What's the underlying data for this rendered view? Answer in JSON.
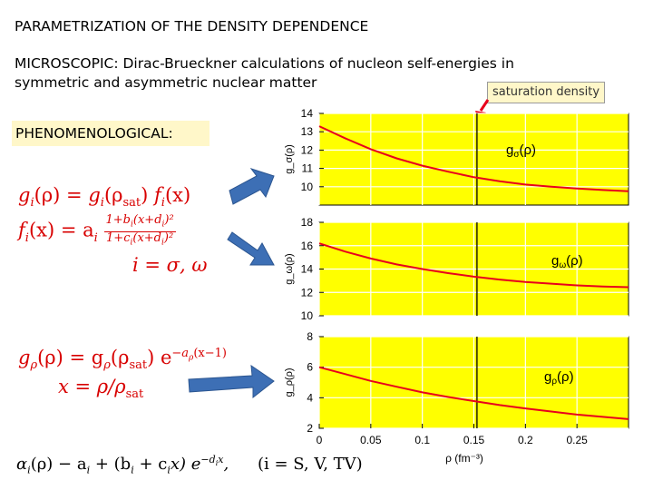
{
  "title": "PARAMETRIZATION OF THE DENSITY DEPENDENCE",
  "microscopic": {
    "label": "MICROSCOPIC:",
    "text_line1": "Dirac-Brueckner calculations of nucleon self-energies in",
    "text_line2": "symmetric and asymmetric nuclear matter"
  },
  "saturation_label": "saturation density",
  "phenomenological_label": "PHENOMENOLOGICAL:",
  "equations": {
    "eq1": {
      "lhs": "g",
      "sub": "i",
      "arg": "(ρ) = ",
      "rhs": "g",
      "rsub": "i",
      "rarg_pre": "(ρ",
      "sat": "sat",
      "rarg_post": ") ",
      "f": "f",
      "fsub": "i",
      "farg": "(x)"
    },
    "eq2": {
      "lhs": "f",
      "sub": "i",
      "arg": "(x) = a",
      "asub": "i",
      "num": "1+b",
      "num_sub": "i",
      "num_rest": "(x+d",
      "num_sub2": "i",
      "num_end": ")²",
      "den": "1+c",
      "den_sub": "i",
      "den_rest": "(x+d",
      "den_sub2": "i",
      "den_end": ")²"
    },
    "eq3": "i = σ, ω",
    "eq4": {
      "lhs": "g",
      "sub": "ρ",
      "arg": "(ρ) = g",
      "rsub": "ρ",
      "rarg": "(ρ",
      "sat": "sat",
      "rest": ") e",
      "exp": "−a",
      "exp_sub": "ρ",
      "exp_rest": "(x−1)"
    },
    "eq5": {
      "text": "x = ρ/ρ",
      "sat": "sat"
    },
    "eq6": {
      "alpha": "α",
      "asub": "i",
      "mid": "(ρ) − a",
      "asub2": "i",
      "plus": " + (b",
      "bsub": "i",
      "plus2": " + c",
      "csub": "i",
      "x": "x) e",
      "exp": "−d",
      "exp_sub": "i",
      "exp_x": "x",
      "comma": ",",
      "cond": "(i = S, V, TV)"
    }
  },
  "colors": {
    "panel_bg": "#ffff00",
    "curve": "#e8001c",
    "arrow": "#3d6fb5",
    "eq_red": "#d80000"
  },
  "chart_data": {
    "type": "line",
    "xlabel": "ρ (fm⁻³)",
    "xlim": [
      0,
      0.3
    ],
    "x_ticks": [
      0,
      0.05,
      0.1,
      0.15,
      0.2,
      0.25
    ],
    "x_tick_labels": [
      "0",
      "0.05",
      "0.1",
      "0.15",
      "0.2",
      "0.25"
    ],
    "saturation_x": 0.153,
    "panels": [
      {
        "ylabel": "g_σ(ρ)",
        "annotation": "g",
        "annotation_sub": "σ",
        "annotation_arg": "(ρ)",
        "ylim": [
          9,
          14
        ],
        "y_ticks": [
          10,
          11,
          12,
          13,
          14
        ],
        "y_tick_labels": [
          "10",
          "11",
          "12",
          "13",
          "14"
        ],
        "x": [
          0.0,
          0.025,
          0.05,
          0.075,
          0.1,
          0.125,
          0.15,
          0.175,
          0.2,
          0.225,
          0.25,
          0.275,
          0.3
        ],
        "y": [
          13.3,
          12.65,
          12.05,
          11.55,
          11.15,
          10.82,
          10.52,
          10.3,
          10.12,
          10.0,
          9.9,
          9.82,
          9.75
        ]
      },
      {
        "ylabel": "g_ω(ρ)",
        "annotation": "g",
        "annotation_sub": "ω",
        "annotation_arg": "(ρ)",
        "ylim": [
          10,
          18
        ],
        "y_ticks": [
          10,
          12,
          14,
          16,
          18
        ],
        "y_tick_labels": [
          "10",
          "12",
          "14",
          "16",
          "18"
        ],
        "x": [
          0.0,
          0.025,
          0.05,
          0.075,
          0.1,
          0.125,
          0.15,
          0.175,
          0.2,
          0.225,
          0.25,
          0.275,
          0.3
        ],
        "y": [
          16.2,
          15.5,
          14.9,
          14.4,
          14.0,
          13.65,
          13.35,
          13.1,
          12.9,
          12.75,
          12.6,
          12.5,
          12.45
        ]
      },
      {
        "ylabel": "g_ρ(ρ)",
        "annotation": "g",
        "annotation_sub": "ρ",
        "annotation_arg": "(ρ)",
        "ylim": [
          2,
          8
        ],
        "y_ticks": [
          2,
          4,
          6,
          8
        ],
        "y_tick_labels": [
          "2",
          "4",
          "6",
          "8"
        ],
        "x": [
          0.0,
          0.025,
          0.05,
          0.075,
          0.1,
          0.125,
          0.15,
          0.175,
          0.2,
          0.225,
          0.25,
          0.275,
          0.3
        ],
        "y": [
          6.0,
          5.55,
          5.1,
          4.72,
          4.35,
          4.05,
          3.78,
          3.52,
          3.3,
          3.1,
          2.9,
          2.75,
          2.6
        ]
      }
    ]
  }
}
